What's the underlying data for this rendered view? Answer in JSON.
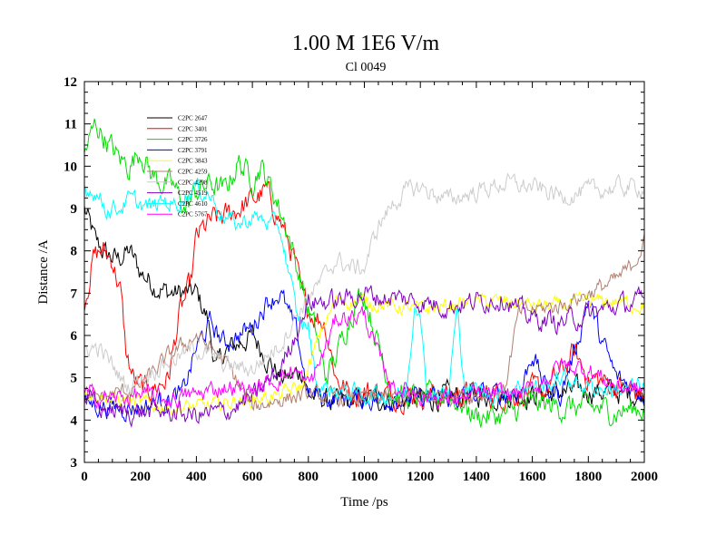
{
  "chart_data": {
    "type": "line",
    "title": "1.00 M 1E6 V/m",
    "subtitle": "Cl 0049",
    "xlabel": "Time /ps",
    "ylabel": "Distance /A",
    "xlim": [
      0,
      2000
    ],
    "ylim": [
      3,
      12
    ],
    "xticks": [
      0,
      200,
      400,
      600,
      800,
      1000,
      1200,
      1400,
      1600,
      1800,
      2000
    ],
    "yticks": [
      3,
      4,
      5,
      6,
      7,
      8,
      9,
      10,
      11,
      12
    ],
    "x_minor_step": 50,
    "y_minor_step": 0.25,
    "grid": false,
    "legend_position": "top-left",
    "series": [
      {
        "name": "C2PC 2647",
        "color": "#000000",
        "noise": 0.28,
        "points": [
          [
            0,
            9.0
          ],
          [
            40,
            8.2
          ],
          [
            80,
            7.9
          ],
          [
            120,
            7.8
          ],
          [
            160,
            8.0
          ],
          [
            200,
            7.5
          ],
          [
            250,
            7.2
          ],
          [
            300,
            7.0
          ],
          [
            350,
            7.0
          ],
          [
            400,
            7.0
          ],
          [
            440,
            6.4
          ],
          [
            470,
            5.2
          ],
          [
            500,
            5.6
          ],
          [
            550,
            5.8
          ],
          [
            600,
            6.0
          ],
          [
            650,
            5.5
          ],
          [
            700,
            5.0
          ],
          [
            740,
            5.0
          ],
          [
            780,
            5.2
          ],
          [
            800,
            4.6
          ],
          [
            900,
            4.4
          ],
          [
            1000,
            4.5
          ],
          [
            1100,
            4.5
          ],
          [
            1200,
            4.5
          ],
          [
            1400,
            4.6
          ],
          [
            1600,
            4.6
          ],
          [
            1800,
            4.7
          ],
          [
            2000,
            4.6
          ]
        ]
      },
      {
        "name": "C2PC 3401",
        "color": "#ff0000",
        "noise": 0.3,
        "points": [
          [
            0,
            6.8
          ],
          [
            30,
            7.8
          ],
          [
            60,
            8.0
          ],
          [
            100,
            7.8
          ],
          [
            130,
            7.0
          ],
          [
            150,
            5.5
          ],
          [
            180,
            4.9
          ],
          [
            220,
            4.7
          ],
          [
            260,
            4.8
          ],
          [
            300,
            5.0
          ],
          [
            340,
            6.5
          ],
          [
            380,
            7.2
          ],
          [
            400,
            8.3
          ],
          [
            450,
            8.7
          ],
          [
            500,
            8.8
          ],
          [
            550,
            9.0
          ],
          [
            600,
            9.2
          ],
          [
            650,
            9.4
          ],
          [
            700,
            8.7
          ],
          [
            750,
            7.8
          ],
          [
            780,
            6.8
          ],
          [
            820,
            6.5
          ],
          [
            860,
            6.3
          ],
          [
            900,
            5.0
          ],
          [
            950,
            4.6
          ],
          [
            1000,
            4.7
          ],
          [
            1100,
            4.6
          ],
          [
            1300,
            4.6
          ],
          [
            1500,
            4.6
          ],
          [
            1650,
            4.7
          ],
          [
            1700,
            5.1
          ],
          [
            1750,
            5.6
          ],
          [
            1800,
            5.0
          ],
          [
            1900,
            4.8
          ],
          [
            2000,
            4.6
          ]
        ]
      },
      {
        "name": "C2PC 3726",
        "color": "#00dd00",
        "noise": 0.3,
        "points": [
          [
            0,
            10.3
          ],
          [
            40,
            11.0
          ],
          [
            80,
            10.6
          ],
          [
            120,
            10.2
          ],
          [
            160,
            10.0
          ],
          [
            200,
            10.4
          ],
          [
            240,
            9.8
          ],
          [
            280,
            9.6
          ],
          [
            320,
            9.5
          ],
          [
            360,
            9.0
          ],
          [
            400,
            9.4
          ],
          [
            450,
            9.6
          ],
          [
            500,
            9.4
          ],
          [
            550,
            10.1
          ],
          [
            600,
            9.7
          ],
          [
            630,
            10.0
          ],
          [
            680,
            9.3
          ],
          [
            720,
            8.6
          ],
          [
            760,
            7.6
          ],
          [
            800,
            6.6
          ],
          [
            830,
            6.0
          ],
          [
            860,
            5.0
          ],
          [
            900,
            5.5
          ],
          [
            950,
            6.5
          ],
          [
            980,
            6.9
          ],
          [
            1000,
            7.0
          ],
          [
            1050,
            5.8
          ],
          [
            1100,
            4.6
          ],
          [
            1200,
            4.5
          ],
          [
            1300,
            4.6
          ],
          [
            1400,
            4.1
          ],
          [
            1500,
            4.1
          ],
          [
            1600,
            4.4
          ],
          [
            1700,
            4.3
          ],
          [
            1800,
            4.3
          ],
          [
            1900,
            4.2
          ],
          [
            2000,
            4.3
          ]
        ]
      },
      {
        "name": "C2PC 3791",
        "color": "#0000ff",
        "noise": 0.25,
        "points": [
          [
            0,
            4.4
          ],
          [
            100,
            4.3
          ],
          [
            200,
            4.3
          ],
          [
            300,
            4.5
          ],
          [
            350,
            4.6
          ],
          [
            400,
            5.7
          ],
          [
            450,
            6.3
          ],
          [
            500,
            5.8
          ],
          [
            550,
            6.0
          ],
          [
            600,
            6.2
          ],
          [
            650,
            6.8
          ],
          [
            700,
            7.0
          ],
          [
            760,
            6.0
          ],
          [
            800,
            4.6
          ],
          [
            900,
            4.5
          ],
          [
            1000,
            4.5
          ],
          [
            1100,
            4.5
          ],
          [
            1200,
            4.5
          ],
          [
            1300,
            4.5
          ],
          [
            1400,
            4.6
          ],
          [
            1500,
            4.6
          ],
          [
            1560,
            4.7
          ],
          [
            1600,
            5.6
          ],
          [
            1650,
            4.7
          ],
          [
            1700,
            4.6
          ],
          [
            1760,
            5.8
          ],
          [
            1800,
            6.9
          ],
          [
            1840,
            6.0
          ],
          [
            1900,
            5.0
          ],
          [
            2000,
            4.6
          ]
        ]
      },
      {
        "name": "C2PC 3843",
        "color": "#ffff00",
        "noise": 0.18,
        "points": [
          [
            0,
            4.7
          ],
          [
            100,
            4.5
          ],
          [
            200,
            4.4
          ],
          [
            300,
            4.3
          ],
          [
            400,
            4.3
          ],
          [
            500,
            4.4
          ],
          [
            600,
            4.5
          ],
          [
            700,
            4.6
          ],
          [
            780,
            4.8
          ],
          [
            850,
            6.2
          ],
          [
            900,
            6.8
          ],
          [
            1000,
            6.8
          ],
          [
            1100,
            6.7
          ],
          [
            1200,
            6.6
          ],
          [
            1300,
            6.7
          ],
          [
            1400,
            6.8
          ],
          [
            1500,
            6.8
          ],
          [
            1600,
            6.7
          ],
          [
            1700,
            6.7
          ],
          [
            1800,
            6.8
          ],
          [
            1900,
            6.8
          ],
          [
            2000,
            6.7
          ]
        ]
      },
      {
        "name": "C2PC 4259",
        "color": "#b08070",
        "noise": 0.2,
        "points": [
          [
            0,
            4.5
          ],
          [
            100,
            4.6
          ],
          [
            200,
            4.8
          ],
          [
            300,
            5.5
          ],
          [
            400,
            6.0
          ],
          [
            500,
            5.4
          ],
          [
            600,
            4.3
          ],
          [
            700,
            4.5
          ],
          [
            800,
            4.6
          ],
          [
            900,
            4.5
          ],
          [
            1000,
            4.5
          ],
          [
            1100,
            4.5
          ],
          [
            1200,
            4.5
          ],
          [
            1300,
            4.6
          ],
          [
            1400,
            4.6
          ],
          [
            1500,
            4.7
          ],
          [
            1550,
            6.5
          ],
          [
            1600,
            6.6
          ],
          [
            1700,
            6.7
          ],
          [
            1800,
            7.0
          ],
          [
            1900,
            7.3
          ],
          [
            1950,
            7.6
          ],
          [
            2000,
            8.2
          ]
        ]
      },
      {
        "name": "C2PC 4298",
        "color": "#cccccc",
        "noise": 0.22,
        "points": [
          [
            0,
            5.7
          ],
          [
            50,
            5.7
          ],
          [
            100,
            5.3
          ],
          [
            150,
            4.8
          ],
          [
            200,
            5.0
          ],
          [
            300,
            5.4
          ],
          [
            400,
            5.7
          ],
          [
            500,
            5.3
          ],
          [
            600,
            5.2
          ],
          [
            700,
            5.8
          ],
          [
            750,
            6.4
          ],
          [
            800,
            6.9
          ],
          [
            850,
            7.3
          ],
          [
            900,
            7.8
          ],
          [
            950,
            7.6
          ],
          [
            1000,
            7.6
          ],
          [
            1050,
            8.6
          ],
          [
            1100,
            9.1
          ],
          [
            1150,
            9.4
          ],
          [
            1200,
            9.5
          ],
          [
            1300,
            9.2
          ],
          [
            1400,
            9.4
          ],
          [
            1500,
            9.6
          ],
          [
            1600,
            9.5
          ],
          [
            1700,
            9.3
          ],
          [
            1800,
            9.4
          ],
          [
            1900,
            9.5
          ],
          [
            2000,
            9.5
          ]
        ]
      },
      {
        "name": "C2PC 4519",
        "color": "#8000c0",
        "noise": 0.25,
        "points": [
          [
            0,
            4.6
          ],
          [
            50,
            4.3
          ],
          [
            100,
            4.2
          ],
          [
            200,
            4.2
          ],
          [
            300,
            4.2
          ],
          [
            400,
            4.1
          ],
          [
            500,
            4.2
          ],
          [
            600,
            4.5
          ],
          [
            700,
            5.2
          ],
          [
            750,
            6.0
          ],
          [
            800,
            6.8
          ],
          [
            900,
            6.8
          ],
          [
            1000,
            7.0
          ],
          [
            1050,
            6.9
          ],
          [
            1100,
            6.9
          ],
          [
            1200,
            6.8
          ],
          [
            1300,
            6.7
          ],
          [
            1400,
            6.8
          ],
          [
            1500,
            6.9
          ],
          [
            1550,
            6.6
          ],
          [
            1600,
            6.4
          ],
          [
            1700,
            6.3
          ],
          [
            1800,
            6.5
          ],
          [
            1900,
            6.7
          ],
          [
            2000,
            6.8
          ]
        ]
      },
      {
        "name": "C2PC 4610",
        "color": "#00ffff",
        "noise": 0.22,
        "points": [
          [
            0,
            9.5
          ],
          [
            40,
            9.4
          ],
          [
            80,
            9.0
          ],
          [
            120,
            9.0
          ],
          [
            160,
            9.2
          ],
          [
            200,
            9.1
          ],
          [
            240,
            9.0
          ],
          [
            280,
            9.2
          ],
          [
            320,
            9.1
          ],
          [
            360,
            9.3
          ],
          [
            400,
            9.5
          ],
          [
            450,
            9.3
          ],
          [
            500,
            8.8
          ],
          [
            550,
            8.6
          ],
          [
            600,
            8.8
          ],
          [
            650,
            8.7
          ],
          [
            700,
            8.5
          ],
          [
            730,
            7.5
          ],
          [
            760,
            6.4
          ],
          [
            800,
            6.2
          ],
          [
            830,
            4.8
          ],
          [
            900,
            4.7
          ],
          [
            1000,
            4.6
          ],
          [
            1100,
            4.6
          ],
          [
            1150,
            4.6
          ],
          [
            1180,
            6.8
          ],
          [
            1200,
            6.7
          ],
          [
            1220,
            4.7
          ],
          [
            1300,
            4.6
          ],
          [
            1330,
            6.6
          ],
          [
            1360,
            4.8
          ],
          [
            1450,
            4.6
          ],
          [
            1550,
            4.8
          ],
          [
            1650,
            4.8
          ],
          [
            1700,
            5.0
          ],
          [
            1800,
            4.8
          ],
          [
            1900,
            4.7
          ],
          [
            2000,
            4.8
          ]
        ]
      },
      {
        "name": "C2PC 5767",
        "color": "#ff00ff",
        "noise": 0.22,
        "points": [
          [
            0,
            4.6
          ],
          [
            100,
            4.5
          ],
          [
            200,
            4.6
          ],
          [
            300,
            4.5
          ],
          [
            400,
            4.6
          ],
          [
            500,
            4.8
          ],
          [
            600,
            4.7
          ],
          [
            700,
            5.0
          ],
          [
            750,
            5.2
          ],
          [
            800,
            4.8
          ],
          [
            850,
            5.5
          ],
          [
            900,
            6.4
          ],
          [
            1000,
            6.5
          ],
          [
            1050,
            5.5
          ],
          [
            1100,
            4.8
          ],
          [
            1200,
            4.6
          ],
          [
            1300,
            4.5
          ],
          [
            1400,
            4.6
          ],
          [
            1500,
            4.6
          ],
          [
            1600,
            4.7
          ],
          [
            1700,
            5.3
          ],
          [
            1800,
            5.2
          ],
          [
            1900,
            4.8
          ],
          [
            2000,
            4.7
          ]
        ]
      }
    ]
  }
}
